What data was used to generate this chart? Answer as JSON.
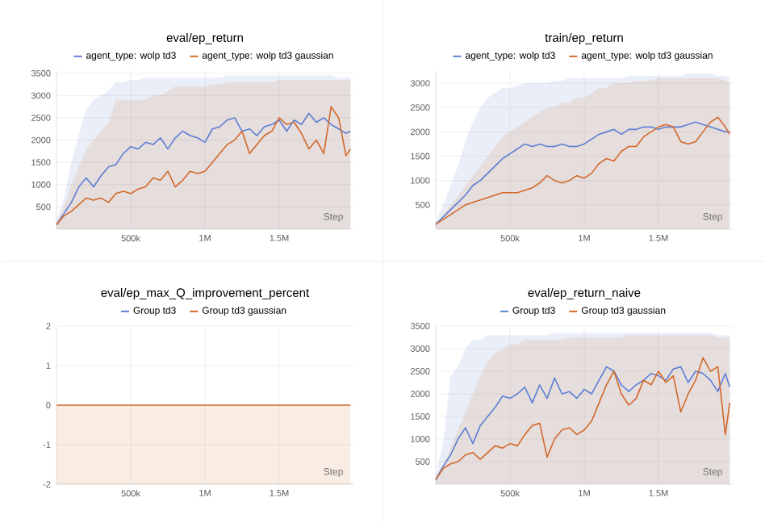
{
  "chart_data": [
    {
      "type": "line",
      "title": "eval/ep_return",
      "xlabel": "Step",
      "legend": "top",
      "grid": true,
      "x": [
        0,
        50000,
        100000,
        150000,
        200000,
        250000,
        300000,
        350000,
        400000,
        450000,
        500000,
        550000,
        600000,
        650000,
        700000,
        750000,
        800000,
        850000,
        900000,
        950000,
        1000000,
        1050000,
        1100000,
        1150000,
        1200000,
        1250000,
        1300000,
        1350000,
        1400000,
        1450000,
        1500000,
        1550000,
        1600000,
        1650000,
        1700000,
        1750000,
        1800000,
        1850000,
        1900000,
        1950000,
        1980000
      ],
      "xlim": [
        0,
        2000000
      ],
      "ylim": [
        0,
        3550
      ],
      "xticks": [
        {
          "value": 500000,
          "label": "500k"
        },
        {
          "value": 1000000,
          "label": "1M"
        },
        {
          "value": 1500000,
          "label": "1.5M"
        }
      ],
      "yticks": [
        500,
        1000,
        1500,
        2000,
        2500,
        3000,
        3500
      ],
      "series": [
        {
          "name": "agent_type: wolp td3",
          "color": "#5b7fd4",
          "values": [
            100,
            350,
            600,
            950,
            1150,
            950,
            1200,
            1400,
            1450,
            1700,
            1850,
            1800,
            1950,
            1900,
            2050,
            1800,
            2050,
            2200,
            2100,
            2050,
            1950,
            2250,
            2300,
            2450,
            2500,
            2200,
            2250,
            2100,
            2300,
            2350,
            2450,
            2200,
            2450,
            2350,
            2600,
            2400,
            2500,
            2350,
            2250,
            2150,
            2200
          ],
          "upper": [
            200,
            700,
            1500,
            2100,
            2700,
            2900,
            3000,
            3100,
            3300,
            3300,
            3350,
            3350,
            3400,
            3400,
            3400,
            3400,
            3400,
            3400,
            3400,
            3400,
            3400,
            3400,
            3400,
            3450,
            3450,
            3450,
            3450,
            3450,
            3450,
            3450,
            3450,
            3450,
            3450,
            3450,
            3450,
            3450,
            3450,
            3450,
            3400,
            3400,
            3400
          ],
          "lower": [
            0,
            0,
            0,
            0,
            0,
            0,
            0,
            0,
            0,
            0,
            0,
            0,
            0,
            0,
            0,
            0,
            0,
            0,
            0,
            0,
            0,
            0,
            0,
            0,
            0,
            0,
            0,
            0,
            0,
            0,
            0,
            0,
            0,
            0,
            0,
            0,
            0,
            0,
            0,
            0,
            0
          ]
        },
        {
          "name": "agent_type: wolp td3 gaussian",
          "color": "#d2692a",
          "values": [
            100,
            300,
            400,
            550,
            700,
            650,
            700,
            600,
            800,
            850,
            800,
            900,
            950,
            1150,
            1100,
            1300,
            950,
            1100,
            1300,
            1250,
            1300,
            1500,
            1700,
            1900,
            2000,
            2200,
            1700,
            1900,
            2100,
            2200,
            2500,
            2350,
            2400,
            2150,
            1800,
            2000,
            1700,
            2750,
            2500,
            1650,
            1800
          ],
          "upper": [
            150,
            500,
            1000,
            1400,
            1800,
            2000,
            2200,
            2400,
            2900,
            2900,
            2900,
            2900,
            2900,
            3000,
            3000,
            3100,
            3200,
            3200,
            3200,
            3200,
            3200,
            3250,
            3250,
            3300,
            3300,
            3300,
            3300,
            3300,
            3300,
            3300,
            3350,
            3350,
            3350,
            3350,
            3350,
            3350,
            3350,
            3350,
            3350,
            3350,
            3350
          ],
          "lower": [
            0,
            0,
            0,
            0,
            0,
            0,
            0,
            0,
            0,
            0,
            0,
            0,
            0,
            0,
            0,
            0,
            0,
            0,
            0,
            0,
            0,
            0,
            0,
            0,
            0,
            0,
            0,
            0,
            0,
            0,
            0,
            0,
            0,
            0,
            0,
            0,
            0,
            0,
            0,
            0,
            0
          ]
        }
      ]
    },
    {
      "type": "line",
      "title": "train/ep_return",
      "xlabel": "Step",
      "legend": "top",
      "grid": true,
      "x": [
        0,
        50000,
        100000,
        150000,
        200000,
        250000,
        300000,
        350000,
        400000,
        450000,
        500000,
        550000,
        600000,
        650000,
        700000,
        750000,
        800000,
        850000,
        900000,
        950000,
        1000000,
        1050000,
        1100000,
        1150000,
        1200000,
        1250000,
        1300000,
        1350000,
        1400000,
        1450000,
        1500000,
        1550000,
        1600000,
        1650000,
        1700000,
        1750000,
        1800000,
        1850000,
        1900000,
        1950000,
        1980000
      ],
      "xlim": [
        0,
        2000000
      ],
      "ylim": [
        0,
        3250
      ],
      "xticks": [
        {
          "value": 500000,
          "label": "500k"
        },
        {
          "value": 1000000,
          "label": "1M"
        },
        {
          "value": 1500000,
          "label": "1.5M"
        }
      ],
      "yticks": [
        500,
        1000,
        1500,
        2000,
        2500,
        3000
      ],
      "series": [
        {
          "name": "agent_type: wolp td3",
          "color": "#5b7fd4",
          "values": [
            100,
            250,
            400,
            550,
            700,
            900,
            1000,
            1150,
            1300,
            1450,
            1550,
            1650,
            1750,
            1700,
            1750,
            1700,
            1700,
            1750,
            1700,
            1700,
            1750,
            1850,
            1950,
            2000,
            2050,
            1950,
            2050,
            2050,
            2100,
            2100,
            2050,
            2100,
            2100,
            2100,
            2150,
            2200,
            2150,
            2100,
            2050,
            2000,
            2000
          ],
          "upper": [
            150,
            500,
            900,
            1300,
            1800,
            2200,
            2500,
            2700,
            2800,
            2900,
            2900,
            2950,
            3000,
            3000,
            3000,
            3000,
            3050,
            3050,
            3100,
            3100,
            3100,
            3100,
            3100,
            3100,
            3100,
            3100,
            3150,
            3150,
            3150,
            3150,
            3150,
            3150,
            3150,
            3150,
            3200,
            3200,
            3200,
            3200,
            3150,
            3150,
            3100
          ],
          "lower": [
            0,
            0,
            0,
            0,
            0,
            0,
            0,
            0,
            0,
            0,
            0,
            0,
            0,
            0,
            0,
            0,
            0,
            0,
            0,
            0,
            0,
            0,
            0,
            0,
            0,
            0,
            0,
            0,
            0,
            0,
            0,
            0,
            0,
            0,
            0,
            0,
            0,
            0,
            0,
            0,
            0
          ]
        },
        {
          "name": "agent_type: wolp td3 gaussian",
          "color": "#d2692a",
          "values": [
            100,
            200,
            300,
            400,
            500,
            550,
            600,
            650,
            700,
            750,
            750,
            750,
            800,
            850,
            950,
            1100,
            1000,
            950,
            1000,
            1100,
            1050,
            1150,
            1350,
            1450,
            1400,
            1600,
            1700,
            1700,
            1900,
            2000,
            2100,
            2150,
            2100,
            1800,
            1750,
            1800,
            2000,
            2200,
            2300,
            2100,
            1950
          ],
          "upper": [
            100,
            300,
            500,
            700,
            900,
            1100,
            1300,
            1500,
            1700,
            1900,
            2000,
            2100,
            2200,
            2300,
            2400,
            2500,
            2500,
            2600,
            2600,
            2700,
            2700,
            2800,
            2900,
            2900,
            3000,
            3000,
            3000,
            3050,
            3050,
            3050,
            3100,
            3100,
            3100,
            3100,
            3100,
            3100,
            3100,
            3100,
            3100,
            3050,
            3000
          ],
          "lower": [
            0,
            0,
            0,
            0,
            0,
            0,
            0,
            0,
            0,
            0,
            0,
            0,
            0,
            0,
            0,
            0,
            0,
            0,
            0,
            0,
            0,
            0,
            0,
            0,
            0,
            0,
            0,
            0,
            0,
            0,
            0,
            0,
            0,
            0,
            0,
            0,
            0,
            0,
            0,
            0,
            0
          ]
        }
      ]
    },
    {
      "type": "line",
      "title": "eval/ep_max_Q_improvement_percent",
      "xlabel": "Step",
      "legend": "top",
      "grid": true,
      "x": [
        0,
        1980000
      ],
      "xlim": [
        0,
        2000000
      ],
      "ylim": [
        -2,
        2
      ],
      "xticks": [
        {
          "value": 500000,
          "label": "500k"
        },
        {
          "value": 1000000,
          "label": "1M"
        },
        {
          "value": 1500000,
          "label": "1.5M"
        }
      ],
      "yticks": [
        -2,
        -1,
        0,
        1,
        2
      ],
      "series": [
        {
          "name": "Group td3",
          "color": "#5b7fd4",
          "values": [
            null,
            null
          ]
        },
        {
          "name": "Group td3 gaussian",
          "color": "#d2692a",
          "values": [
            0,
            0
          ],
          "upper": [
            0,
            0
          ],
          "lower": [
            -2,
            -2
          ]
        }
      ]
    },
    {
      "type": "line",
      "title": "eval/ep_return_naive",
      "xlabel": "Step",
      "legend": "top",
      "grid": true,
      "x": [
        0,
        50000,
        100000,
        150000,
        200000,
        250000,
        300000,
        350000,
        400000,
        450000,
        500000,
        550000,
        600000,
        650000,
        700000,
        750000,
        800000,
        850000,
        900000,
        950000,
        1000000,
        1050000,
        1100000,
        1150000,
        1200000,
        1250000,
        1300000,
        1350000,
        1400000,
        1450000,
        1500000,
        1550000,
        1600000,
        1650000,
        1700000,
        1750000,
        1800000,
        1850000,
        1900000,
        1950000,
        1980000
      ],
      "xlim": [
        0,
        2000000
      ],
      "ylim": [
        0,
        3500
      ],
      "xticks": [
        {
          "value": 500000,
          "label": "500k"
        },
        {
          "value": 1000000,
          "label": "1M"
        },
        {
          "value": 1500000,
          "label": "1.5M"
        }
      ],
      "yticks": [
        500,
        1000,
        1500,
        2000,
        2500,
        3000,
        3500
      ],
      "series": [
        {
          "name": "Group td3",
          "color": "#5b7fd4",
          "values": [
            100,
            400,
            650,
            1000,
            1250,
            900,
            1300,
            1500,
            1700,
            1950,
            1900,
            2000,
            2150,
            1800,
            2200,
            1900,
            2350,
            2000,
            2050,
            1900,
            2100,
            2000,
            2300,
            2600,
            2500,
            2200,
            2050,
            2200,
            2300,
            2450,
            2400,
            2300,
            2550,
            2600,
            2250,
            2500,
            2450,
            2300,
            2050,
            2450,
            2150
          ],
          "upper": [
            200,
            900,
            2400,
            2600,
            3000,
            3200,
            3200,
            3300,
            3300,
            3300,
            3300,
            3300,
            3300,
            3300,
            3300,
            3300,
            3350,
            3350,
            3350,
            3350,
            3350,
            3350,
            3350,
            3350,
            3350,
            3350,
            3350,
            3350,
            3350,
            3350,
            3350,
            3350,
            3350,
            3350,
            3350,
            3350,
            3350,
            3350,
            3300,
            3300,
            3300
          ],
          "lower": [
            0,
            0,
            0,
            0,
            0,
            0,
            0,
            0,
            0,
            0,
            0,
            0,
            0,
            0,
            0,
            0,
            0,
            0,
            0,
            0,
            0,
            0,
            0,
            0,
            0,
            0,
            0,
            0,
            0,
            0,
            0,
            0,
            0,
            0,
            0,
            0,
            0,
            0,
            0,
            0,
            0
          ]
        },
        {
          "name": "Group td3 gaussian",
          "color": "#d2692a",
          "values": [
            100,
            350,
            450,
            500,
            650,
            700,
            550,
            700,
            850,
            800,
            900,
            850,
            1100,
            1300,
            1350,
            600,
            1000,
            1200,
            1250,
            1100,
            1200,
            1400,
            1800,
            2200,
            2500,
            2000,
            1750,
            1900,
            2300,
            2200,
            2500,
            2250,
            2400,
            1600,
            2000,
            2300,
            2800,
            2500,
            2600,
            1100,
            1800
          ],
          "upper": [
            150,
            400,
            800,
            1200,
            1600,
            2000,
            2400,
            2700,
            2900,
            3000,
            3100,
            3100,
            3200,
            3200,
            3200,
            3200,
            3200,
            3200,
            3250,
            3250,
            3250,
            3250,
            3250,
            3250,
            3250,
            3250,
            3300,
            3300,
            3300,
            3300,
            3300,
            3300,
            3300,
            3300,
            3300,
            3300,
            3300,
            3300,
            3250,
            3250,
            3250
          ],
          "lower": [
            0,
            0,
            0,
            0,
            0,
            0,
            0,
            0,
            0,
            0,
            0,
            0,
            0,
            0,
            0,
            0,
            0,
            0,
            0,
            0,
            0,
            0,
            0,
            0,
            0,
            0,
            0,
            0,
            0,
            0,
            0,
            0,
            0,
            0,
            0,
            0,
            0,
            0,
            0,
            0,
            0
          ]
        }
      ]
    }
  ]
}
